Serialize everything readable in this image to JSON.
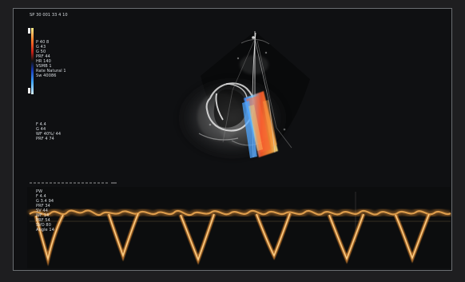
{
  "ui": {
    "header_text": "SP 30 001 33 4 10",
    "scale_label": "",
    "parameter_lines": [
      "P 40 8",
      "G 43",
      "G 50",
      "PRF 44",
      "HR 140",
      "VSMB 1",
      "Rate Natural 1",
      "Sw 40086"
    ],
    "middle_lines": [
      "",
      "F 4.4",
      "G 44",
      "WF 40%/ 44",
      "PRF 4 74"
    ],
    "pw_lines": [
      "PW",
      "F 4.4",
      "G 3.4 94",
      "PRF 34",
      "SV 44",
      "WF 14",
      "PRF 54",
      "SVO 80",
      "Angle 14"
    ]
  },
  "colors": {
    "screen_background": "#0f1012",
    "frame_background": "#1e1e20",
    "doppler_trace": "#e0952f",
    "doppler_highlight": "#ffd27a",
    "color_flow_red": "#ff4a2d",
    "color_flow_blue": "#4da3ff",
    "color_flow_yellow": "#ffe26d",
    "grayscale_bright": "#d9d9d9"
  }
}
